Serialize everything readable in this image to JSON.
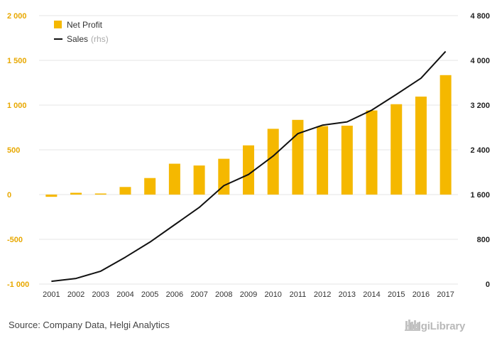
{
  "chart_data": {
    "type": "bar",
    "categories": [
      "2001",
      "2002",
      "2003",
      "2004",
      "2005",
      "2006",
      "2007",
      "2008",
      "2009",
      "2010",
      "2011",
      "2012",
      "2013",
      "2014",
      "2015",
      "2016",
      "2017"
    ],
    "series": [
      {
        "name": "Net Profit",
        "type": "bar",
        "axis": "left",
        "color": "#f5b800",
        "values": [
          -25,
          20,
          12,
          85,
          185,
          345,
          325,
          400,
          550,
          735,
          835,
          765,
          770,
          940,
          1010,
          1095,
          1335
        ]
      },
      {
        "name": "Sales",
        "name_suffix": "(rhs)",
        "type": "line",
        "axis": "right",
        "color": "#111111",
        "values": [
          50,
          100,
          230,
          480,
          750,
          1060,
          1370,
          1760,
          1960,
          2290,
          2690,
          2840,
          2900,
          3110,
          3390,
          3680,
          4160
        ]
      }
    ],
    "left_axis": {
      "min": -1000,
      "max": 2000,
      "ticks": [
        -1000,
        -500,
        0,
        500,
        1000,
        1500,
        2000
      ],
      "tick_labels": [
        "-1 000",
        "-500",
        "0",
        "500",
        "1 000",
        "1 500",
        "2 000"
      ],
      "color": "#e8a800"
    },
    "right_axis": {
      "min": 0,
      "max": 4800,
      "ticks": [
        0,
        800,
        1600,
        2400,
        3200,
        4000,
        4800
      ],
      "tick_labels": [
        "0",
        "800",
        "1 600",
        "2 400",
        "3 200",
        "4 000",
        "4 800"
      ],
      "color": "#222222"
    },
    "legend": {
      "placement": "top-left"
    },
    "grid": true
  },
  "footer": {
    "source": "Source: Company Data, Helgi Analytics",
    "logo_text": "HelgiLibrary"
  }
}
